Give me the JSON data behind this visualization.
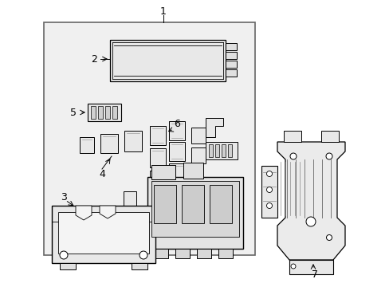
{
  "bg_color": "#ffffff",
  "lc": "#000000",
  "fill_light": "#eeeeee",
  "fill_med": "#e0e0e0",
  "fig_width": 4.89,
  "fig_height": 3.6,
  "dpi": 100
}
